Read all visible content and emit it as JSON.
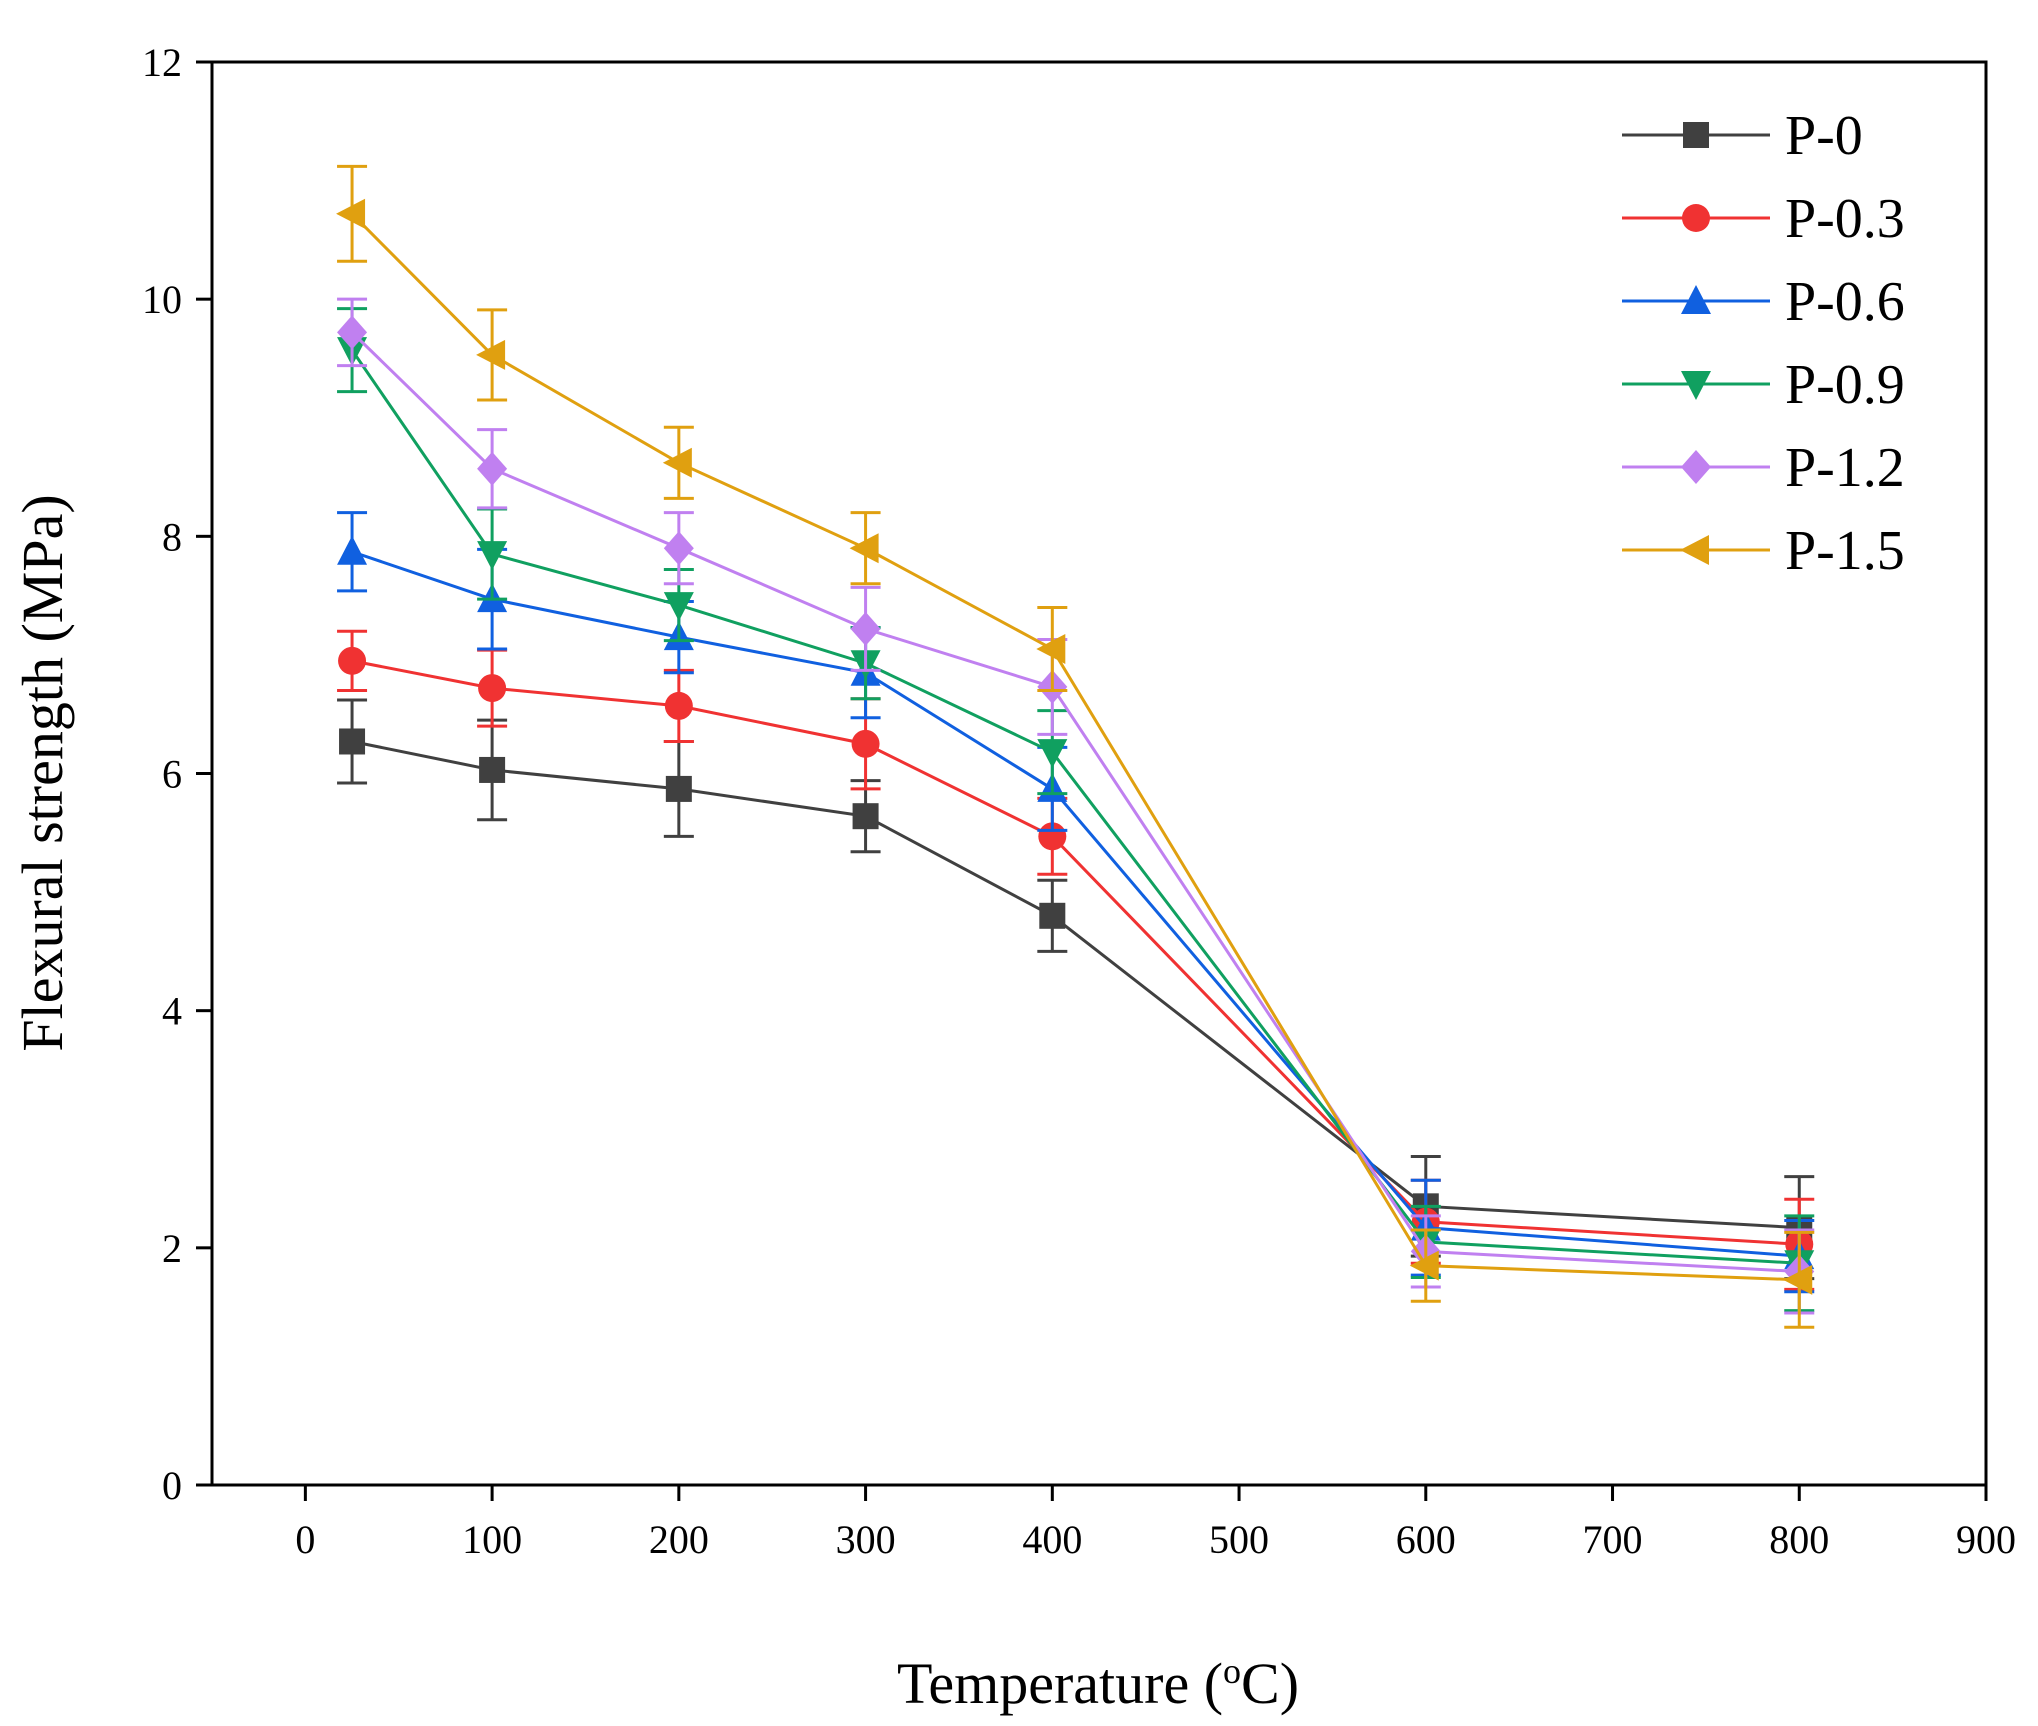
{
  "chart_data": {
    "type": "line",
    "title": "",
    "xlabel_main": "Temperature (",
    "xlabel_sup": "o",
    "xlabel_tail": "C)",
    "ylabel": "Flexural strength (MPa)",
    "xlim": [
      -50,
      900
    ],
    "ylim": [
      0,
      12
    ],
    "xticks": [
      0,
      100,
      200,
      300,
      400,
      500,
      600,
      700,
      800,
      900
    ],
    "yticks": [
      0,
      2,
      4,
      6,
      8,
      10,
      12
    ],
    "x": [
      25,
      100,
      200,
      300,
      400,
      600,
      800
    ],
    "legend_position": "top-right",
    "series": [
      {
        "name": "P-0",
        "color": "#404040",
        "marker": "square",
        "values": [
          6.27,
          6.03,
          5.87,
          5.64,
          4.8,
          2.35,
          2.17
        ],
        "errors": [
          0.35,
          0.42,
          0.4,
          0.3,
          0.3,
          0.42,
          0.43
        ]
      },
      {
        "name": "P-0.3",
        "color": "#f03232",
        "marker": "circle",
        "values": [
          6.95,
          6.72,
          6.57,
          6.25,
          5.47,
          2.22,
          2.03
        ],
        "errors": [
          0.25,
          0.32,
          0.3,
          0.38,
          0.32,
          0.35,
          0.38
        ]
      },
      {
        "name": "P-0.6",
        "color": "#1060e0",
        "marker": "triangle-up",
        "values": [
          7.87,
          7.47,
          7.15,
          6.85,
          5.87,
          2.17,
          1.93
        ],
        "errors": [
          0.33,
          0.42,
          0.3,
          0.38,
          0.35,
          0.4,
          0.3
        ]
      },
      {
        "name": "P-0.9",
        "color": "#10a060",
        "marker": "triangle-down",
        "values": [
          9.57,
          7.85,
          7.42,
          6.93,
          6.18,
          2.05,
          1.87
        ],
        "errors": [
          0.35,
          0.38,
          0.3,
          0.3,
          0.35,
          0.3,
          0.4
        ]
      },
      {
        "name": "P-1.2",
        "color": "#c080f0",
        "marker": "diamond",
        "values": [
          9.72,
          8.57,
          7.9,
          7.22,
          6.73,
          1.97,
          1.8
        ],
        "errors": [
          0.28,
          0.33,
          0.3,
          0.35,
          0.4,
          0.3,
          0.35
        ]
      },
      {
        "name": "P-1.5",
        "color": "#e0a010",
        "marker": "triangle-left",
        "values": [
          10.72,
          9.53,
          8.62,
          7.9,
          7.05,
          1.85,
          1.73
        ],
        "errors": [
          0.4,
          0.38,
          0.3,
          0.3,
          0.35,
          0.3,
          0.4
        ]
      }
    ]
  }
}
